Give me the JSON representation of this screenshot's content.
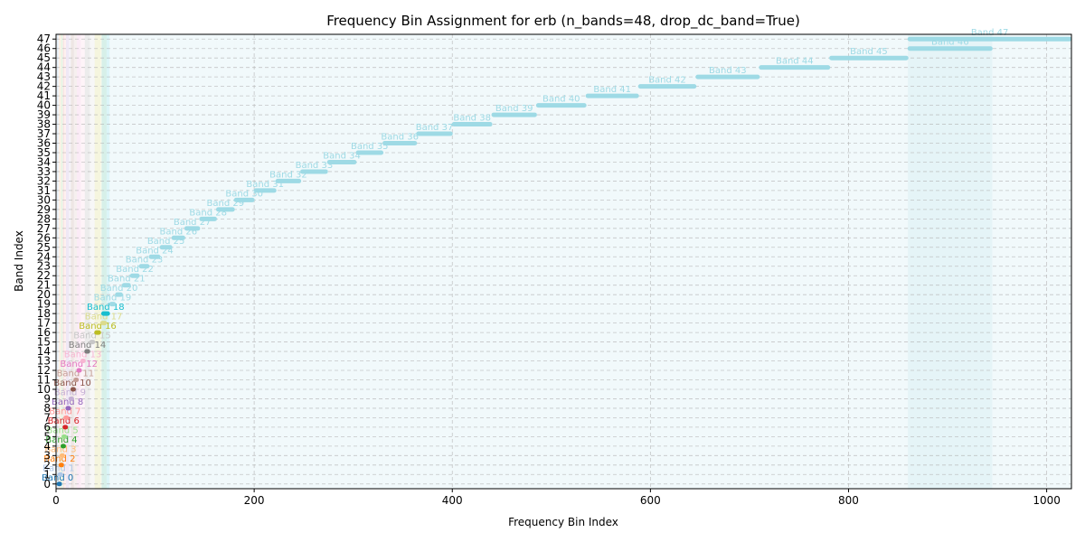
{
  "chart_data": {
    "type": "scatter",
    "title": "Frequency Bin Assignment for erb (n_bands=48, drop_dc_band=True)",
    "xlabel": "Frequency Bin Index",
    "ylabel": "Band Index",
    "xlim": [
      0,
      1025
    ],
    "ylim": [
      -0.5,
      47.5
    ],
    "xticks": [
      0,
      200,
      400,
      600,
      800,
      1000
    ],
    "yticks": [
      0,
      1,
      2,
      3,
      4,
      5,
      6,
      7,
      8,
      9,
      10,
      11,
      12,
      13,
      14,
      15,
      16,
      17,
      18,
      19,
      20,
      21,
      22,
      23,
      24,
      25,
      26,
      27,
      28,
      29,
      30,
      31,
      32,
      33,
      34,
      35,
      36,
      37,
      38,
      39,
      40,
      41,
      42,
      43,
      44,
      45,
      46,
      47
    ],
    "grid": true,
    "bands": [
      {
        "band": 0,
        "start": 1,
        "end": 2,
        "label": "Band 0",
        "color": "#1f77b4"
      },
      {
        "band": 1,
        "start": 2,
        "end": 3,
        "label": "Band 1",
        "color": "#aec7e8"
      },
      {
        "band": 2,
        "start": 3,
        "end": 4,
        "label": "Band 2",
        "color": "#ff7f0e"
      },
      {
        "band": 3,
        "start": 4,
        "end": 5,
        "label": "Band 3",
        "color": "#ffbb78"
      },
      {
        "band": 4,
        "start": 5,
        "end": 6,
        "label": "Band 4",
        "color": "#2ca02c"
      },
      {
        "band": 5,
        "start": 6,
        "end": 7,
        "label": "Band 5",
        "color": "#98df8a"
      },
      {
        "band": 6,
        "start": 7,
        "end": 8,
        "label": "Band 6",
        "color": "#d62728"
      },
      {
        "band": 7,
        "start": 8,
        "end": 10,
        "label": "Band 7",
        "color": "#ff9896"
      },
      {
        "band": 8,
        "start": 10,
        "end": 13,
        "label": "Band 8",
        "color": "#9467bd"
      },
      {
        "band": 9,
        "start": 13,
        "end": 15,
        "label": "Band 9",
        "color": "#c5b0d5"
      },
      {
        "band": 10,
        "start": 15,
        "end": 18,
        "label": "Band 10",
        "color": "#8c564b"
      },
      {
        "band": 11,
        "start": 18,
        "end": 21,
        "label": "Band 11",
        "color": "#c49c94"
      },
      {
        "band": 12,
        "start": 21,
        "end": 25,
        "label": "Band 12",
        "color": "#e377c2"
      },
      {
        "band": 13,
        "start": 25,
        "end": 29,
        "label": "Band 13",
        "color": "#f7b6d2"
      },
      {
        "band": 14,
        "start": 29,
        "end": 34,
        "label": "Band 14",
        "color": "#7f7f7f"
      },
      {
        "band": 15,
        "start": 34,
        "end": 39,
        "label": "Band 15",
        "color": "#c7c7c7"
      },
      {
        "band": 16,
        "start": 39,
        "end": 45,
        "label": "Band 16",
        "color": "#bcbd22"
      },
      {
        "band": 17,
        "start": 45,
        "end": 51,
        "label": "Band 17",
        "color": "#dbdb8d"
      },
      {
        "band": 18,
        "start": 46,
        "end": 54,
        "label": "Band 18",
        "color": "#17becf"
      },
      {
        "band": 19,
        "start": 54,
        "end": 60,
        "label": "Band 19",
        "color": "#9edae5"
      },
      {
        "band": 20,
        "start": 60,
        "end": 67,
        "label": "Band 20",
        "color": "#9edae5"
      },
      {
        "band": 21,
        "start": 67,
        "end": 75,
        "label": "Band 21",
        "color": "#9edae5"
      },
      {
        "band": 22,
        "start": 75,
        "end": 84,
        "label": "Band 22",
        "color": "#9edae5"
      },
      {
        "band": 23,
        "start": 84,
        "end": 94,
        "label": "Band 23",
        "color": "#9edae5"
      },
      {
        "band": 24,
        "start": 94,
        "end": 105,
        "label": "Band 24",
        "color": "#9edae5"
      },
      {
        "band": 25,
        "start": 105,
        "end": 117,
        "label": "Band 25",
        "color": "#9edae5"
      },
      {
        "band": 26,
        "start": 117,
        "end": 130,
        "label": "Band 26",
        "color": "#9edae5"
      },
      {
        "band": 27,
        "start": 130,
        "end": 145,
        "label": "Band 27",
        "color": "#9edae5"
      },
      {
        "band": 28,
        "start": 145,
        "end": 162,
        "label": "Band 28",
        "color": "#9edae5"
      },
      {
        "band": 29,
        "start": 162,
        "end": 180,
        "label": "Band 29",
        "color": "#9edae5"
      },
      {
        "band": 30,
        "start": 180,
        "end": 200,
        "label": "Band 30",
        "color": "#9edae5"
      },
      {
        "band": 31,
        "start": 200,
        "end": 222,
        "label": "Band 31",
        "color": "#9edae5"
      },
      {
        "band": 32,
        "start": 222,
        "end": 247,
        "label": "Band 32",
        "color": "#9edae5"
      },
      {
        "band": 33,
        "start": 247,
        "end": 274,
        "label": "Band 33",
        "color": "#9edae5"
      },
      {
        "band": 34,
        "start": 274,
        "end": 303,
        "label": "Band 34",
        "color": "#9edae5"
      },
      {
        "band": 35,
        "start": 303,
        "end": 330,
        "label": "Band 35",
        "color": "#9edae5"
      },
      {
        "band": 36,
        "start": 330,
        "end": 364,
        "label": "Band 36",
        "color": "#9edae5"
      },
      {
        "band": 37,
        "start": 364,
        "end": 400,
        "label": "Band 37",
        "color": "#9edae5"
      },
      {
        "band": 38,
        "start": 400,
        "end": 440,
        "label": "Band 38",
        "color": "#9edae5"
      },
      {
        "band": 39,
        "start": 440,
        "end": 485,
        "label": "Band 39",
        "color": "#9edae5"
      },
      {
        "band": 40,
        "start": 485,
        "end": 535,
        "label": "Band 40",
        "color": "#9edae5"
      },
      {
        "band": 41,
        "start": 535,
        "end": 588,
        "label": "Band 41",
        "color": "#9edae5"
      },
      {
        "band": 42,
        "start": 588,
        "end": 646,
        "label": "Band 42",
        "color": "#9edae5"
      },
      {
        "band": 43,
        "start": 646,
        "end": 710,
        "label": "Band 43",
        "color": "#9edae5"
      },
      {
        "band": 44,
        "start": 710,
        "end": 781,
        "label": "Band 44",
        "color": "#9edae5"
      },
      {
        "band": 45,
        "start": 781,
        "end": 860,
        "label": "Band 45",
        "color": "#9edae5"
      },
      {
        "band": 46,
        "start": 860,
        "end": 945,
        "label": "Band 46",
        "color": "#9edae5"
      },
      {
        "band": 47,
        "start": 860,
        "end": 1025,
        "label": "Band 47",
        "color": "#9edae5"
      }
    ]
  }
}
